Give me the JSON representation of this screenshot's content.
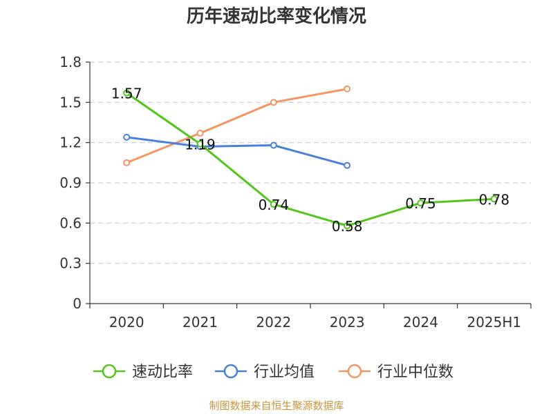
{
  "chart_data": {
    "type": "line",
    "title": "历年速动比率变化情况",
    "categories": [
      "2020",
      "2021",
      "2022",
      "2023",
      "2024",
      "2025H1"
    ],
    "ylim": [
      0,
      1.8
    ],
    "yticks": [
      "0",
      "0.3",
      "0.6",
      "0.9",
      "1.2",
      "1.5",
      "1.8"
    ],
    "grid": true,
    "legend_position": "bottom",
    "series": [
      {
        "name": "速动比率",
        "color": "#52c41a",
        "values": [
          1.57,
          1.19,
          0.74,
          0.58,
          0.75,
          0.78
        ],
        "labels": [
          "1.57",
          "1.19",
          "0.74",
          "0.58",
          "0.75",
          "0.78"
        ],
        "show_labels": true
      },
      {
        "name": "行业均值",
        "color": "#4a7fdb",
        "values": [
          1.24,
          1.17,
          1.18,
          1.03,
          null,
          null
        ],
        "show_labels": false
      },
      {
        "name": "行业中位数",
        "color": "#f59563",
        "values": [
          1.05,
          1.27,
          1.5,
          1.6,
          null,
          null
        ],
        "show_labels": false
      }
    ],
    "source": "制图数据来自恒生聚源数据库"
  }
}
